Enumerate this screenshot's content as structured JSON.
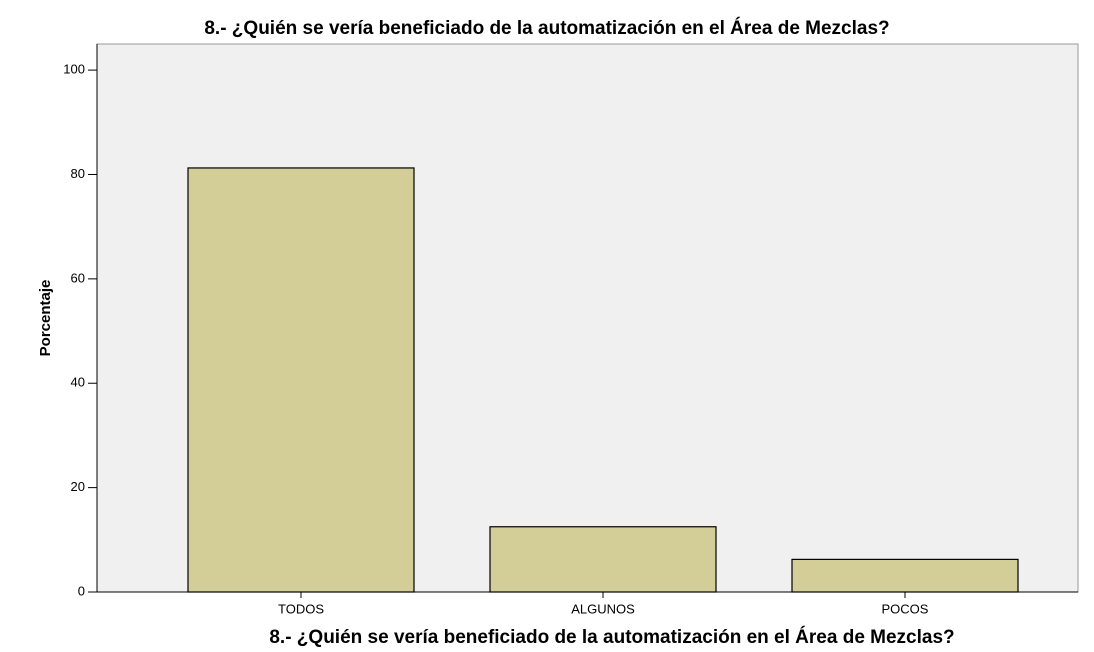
{
  "chart_data": {
    "type": "bar",
    "title": "8.- ¿Quién se vería beneficiado de la automatización en el Área de Mezclas?",
    "xlabel": "8.- ¿Quién se vería beneficiado de la automatización en el Área de Mezclas?",
    "ylabel": "Porcentaje",
    "categories": [
      "TODOS",
      "ALGUNOS",
      "POCOS"
    ],
    "values": [
      81.25,
      12.5,
      6.25
    ],
    "color": "#d3ce97",
    "ylim": [
      0,
      105
    ],
    "yticks": [
      0,
      20,
      40,
      60,
      80,
      100
    ],
    "grid": false
  }
}
